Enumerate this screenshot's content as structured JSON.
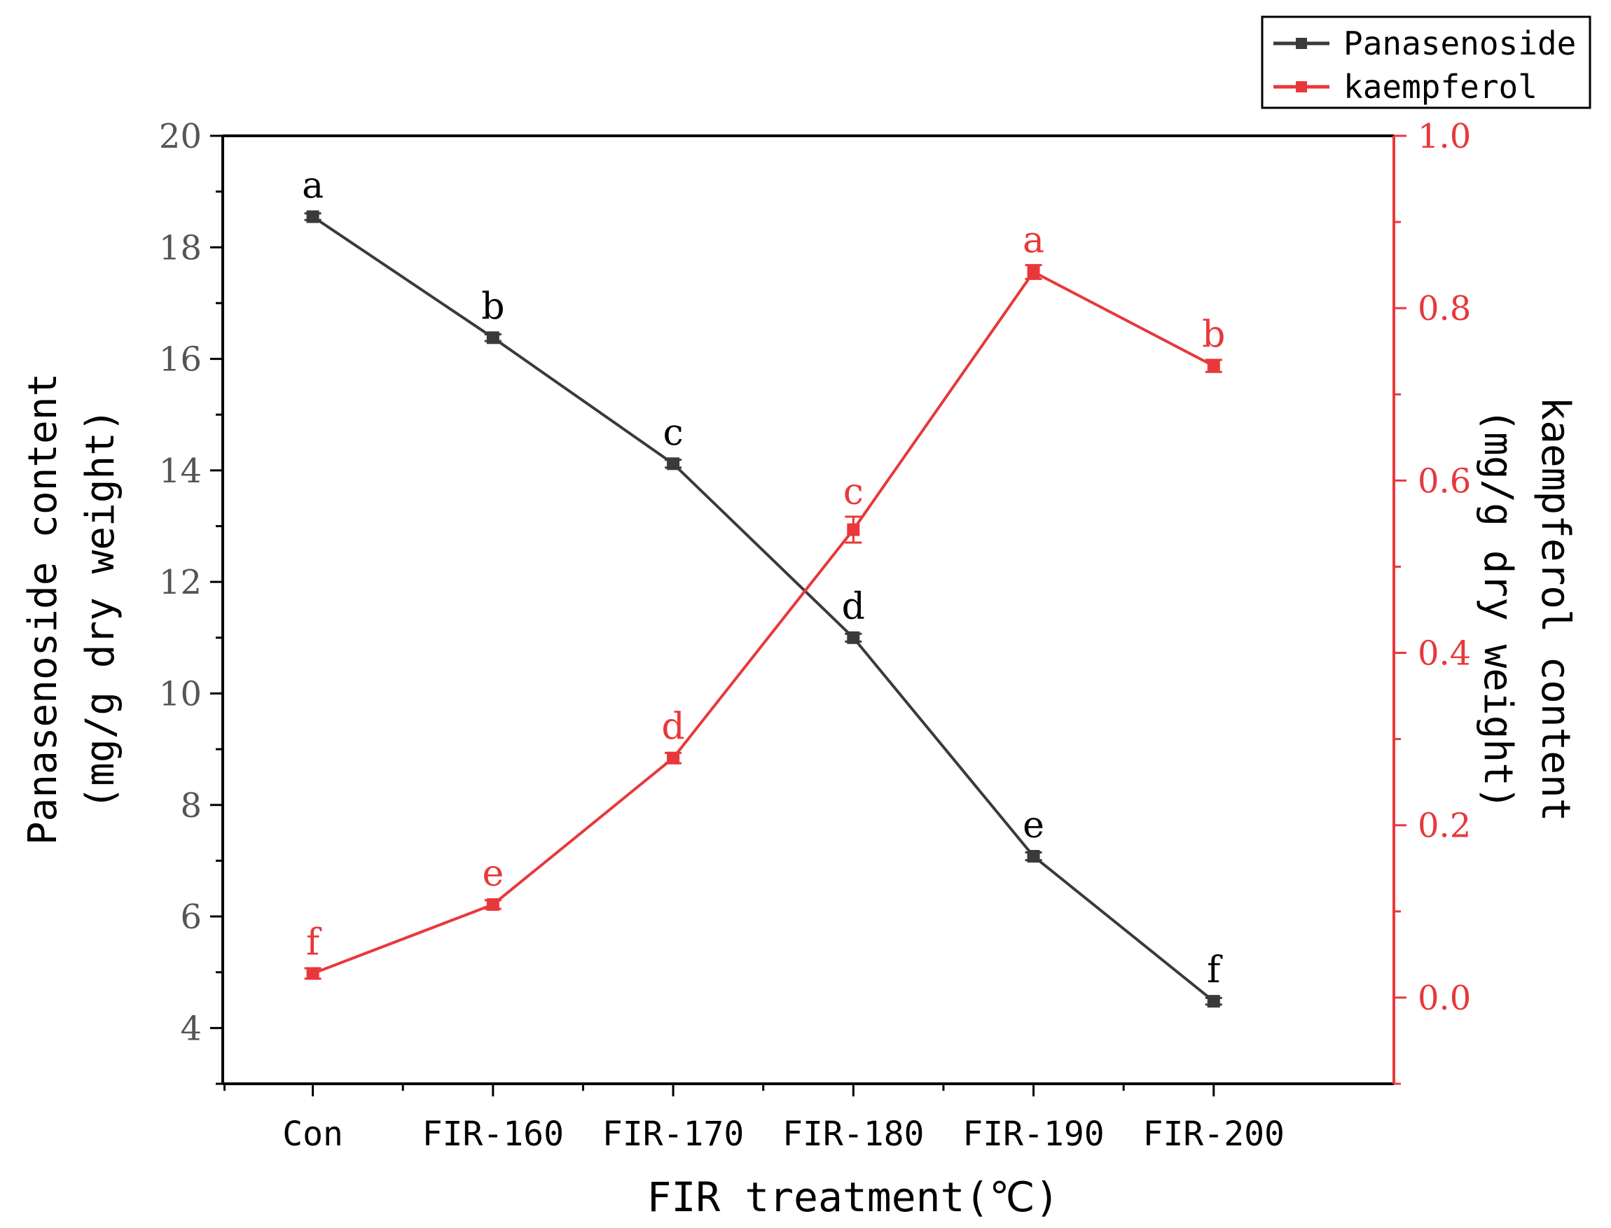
{
  "chart_data": {
    "type": "line",
    "categories": [
      "Con",
      "FIR-160",
      "FIR-170",
      "FIR-180",
      "FIR-190",
      "FIR-200"
    ],
    "xlabel": "FIR treatment(℃)",
    "ylabel_left": [
      "Panasenoside content",
      "(mg/g dry weight)"
    ],
    "ylabel_right": [
      "kaempferol content",
      "(mg/g dry weight)"
    ],
    "ylim_left": [
      3,
      20
    ],
    "yticks_left": [
      "4",
      "6",
      "8",
      "10",
      "12",
      "14",
      "16",
      "18",
      "20"
    ],
    "ylim_right": [
      -0.1,
      1.0
    ],
    "yticks_right": [
      "0.0",
      "0.2",
      "0.4",
      "0.6",
      "0.8",
      "1.0"
    ],
    "grid": false,
    "legend_position": "top-right, outside plot",
    "series": [
      {
        "name": "Panasenoside",
        "axis": "left",
        "color": "#3a3a3a",
        "values": [
          18.55,
          16.38,
          14.12,
          11.0,
          7.08,
          4.48
        ],
        "errors": [
          0.06,
          0.06,
          0.07,
          0.07,
          0.07,
          0.06
        ],
        "labels": [
          "a",
          "b",
          "c",
          "d",
          "e",
          "f"
        ]
      },
      {
        "name": "kaempferol",
        "axis": "right",
        "color": "#e8383b",
        "values": [
          0.028,
          0.108,
          0.278,
          0.543,
          0.842,
          0.733
        ],
        "errors": [
          0.006,
          0.005,
          0.006,
          0.015,
          0.008,
          0.007
        ],
        "labels": [
          "f",
          "e",
          "d",
          "c",
          "a",
          "b"
        ]
      }
    ]
  }
}
